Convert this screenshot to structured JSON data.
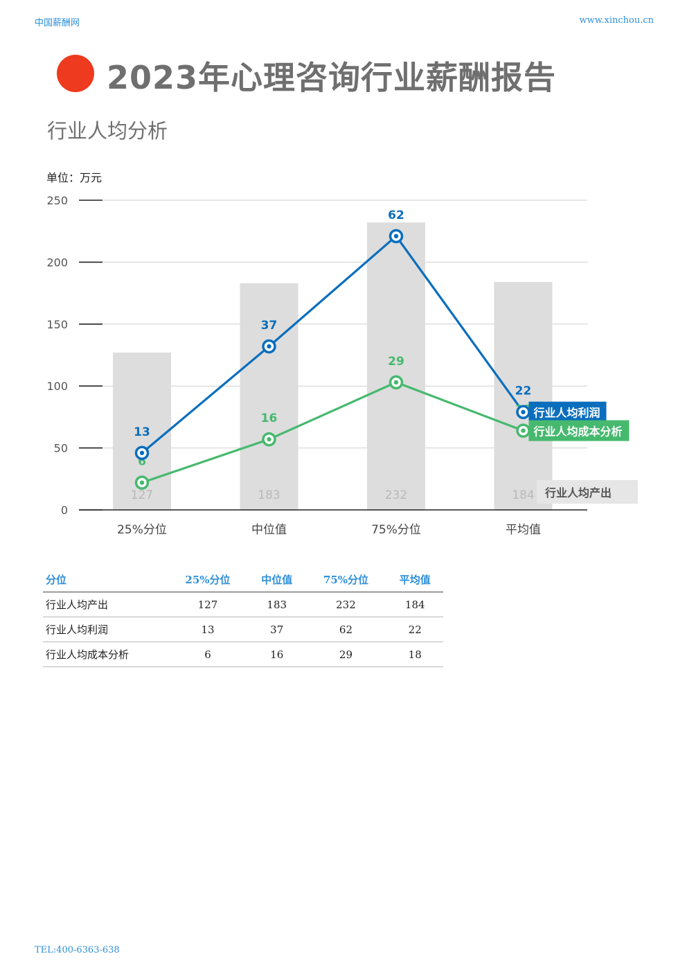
{
  "header": {
    "brand": "中国薪酬网",
    "site": "www.xinchou.cn"
  },
  "title": "2023年心理咨询行业薪酬报告",
  "subtitle": "行业人均分析",
  "unit_label": "单位：万元",
  "colors": {
    "accent": "#ee3a1e",
    "blue": "#0a6ebd",
    "green": "#46b96e",
    "bar": "#dddddd",
    "link": "#2f8fd8"
  },
  "chart_data": {
    "type": "bar+line",
    "categories": [
      "25%分位",
      "中位值",
      "75%分位",
      "平均值"
    ],
    "ylim": [
      0,
      250
    ],
    "yticks": [
      0,
      50,
      100,
      150,
      200,
      250
    ],
    "grid": true,
    "bars": {
      "name": "行业人均产出",
      "values": [
        127,
        183,
        232,
        184
      ]
    },
    "lines": [
      {
        "name": "行业人均利润",
        "labels": [
          13,
          37,
          62,
          22
        ],
        "positions": [
          46,
          132,
          221,
          79
        ],
        "color": "#0a6ebd"
      },
      {
        "name": "行业人均成本分析",
        "labels": [
          6,
          16,
          29,
          18
        ],
        "positions": [
          22,
          57,
          103,
          64
        ],
        "color": "#46b96e"
      }
    ]
  },
  "table": {
    "headers": [
      "分位",
      "25%分位",
      "中位值",
      "75%分位",
      "平均值"
    ],
    "rows": [
      [
        "行业人均产出",
        "127",
        "183",
        "232",
        "184"
      ],
      [
        "行业人均利润",
        "13",
        "37",
        "62",
        "22"
      ],
      [
        "行业人均成本分析",
        "6",
        "16",
        "29",
        "18"
      ]
    ]
  },
  "footer": "TEL:400-6363-638"
}
